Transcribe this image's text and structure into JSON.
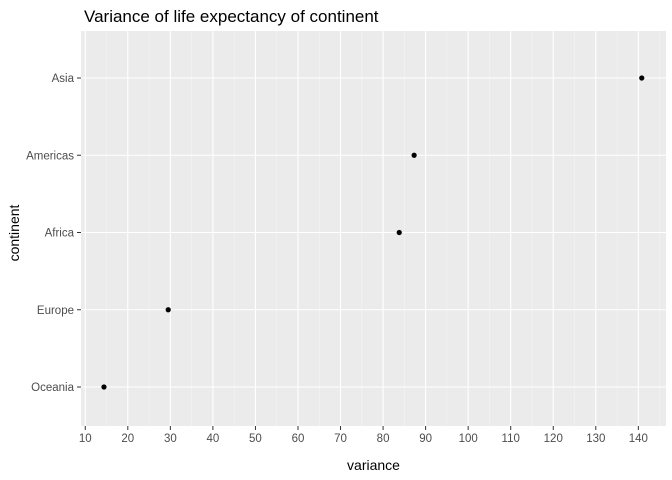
{
  "chart_data": {
    "type": "scatter",
    "title": "Variance of life expectancy of continent",
    "xlabel": "variance",
    "ylabel": "continent",
    "xlim": [
      9.0,
      146.5
    ],
    "x_ticks": [
      10,
      20,
      30,
      40,
      50,
      60,
      70,
      80,
      90,
      100,
      110,
      120,
      130,
      140
    ],
    "categories": [
      "Oceania",
      "Europe",
      "Africa",
      "Americas",
      "Asia"
    ],
    "values": [
      14.4,
      29.5,
      83.8,
      87.3,
      140.8
    ],
    "grid": true,
    "legend": "none",
    "colors": {
      "panel_background": "#ebebeb",
      "grid_major": "#ffffff",
      "grid_minor": "#f5f5f5",
      "point": "#000000",
      "tick_label": "#4d4d4d",
      "tick_mark": "#333333"
    }
  }
}
